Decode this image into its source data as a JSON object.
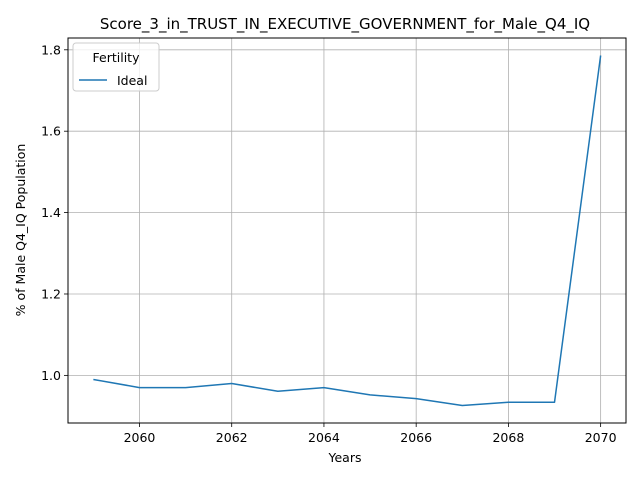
{
  "chart_data": {
    "type": "line",
    "title": "Score_3_in_TRUST_IN_EXECUTIVE_GOVERNMENT_for_Male_Q4_IQ",
    "xlabel": "Years",
    "ylabel": "% of Male Q4_IQ Population",
    "x": [
      2059,
      2060,
      2061,
      2062,
      2063,
      2064,
      2065,
      2066,
      2067,
      2068,
      2069,
      2070
    ],
    "series": [
      {
        "name": "Ideal",
        "color": "#1f77b4",
        "values": [
          0.99,
          0.97,
          0.97,
          0.98,
          0.961,
          0.97,
          0.952,
          0.943,
          0.926,
          0.934,
          0.934,
          1.786
        ]
      }
    ],
    "xlim": [
      2058.45,
      2070.55
    ],
    "ylim": [
      0.883,
      1.829
    ],
    "xticks": [
      2060,
      2062,
      2064,
      2066,
      2068,
      2070
    ],
    "yticks": [
      1.0,
      1.2,
      1.4,
      1.6,
      1.8
    ],
    "ytick_labels": [
      "1.0",
      "1.2",
      "1.4",
      "1.6",
      "1.8"
    ],
    "grid": true,
    "legend": {
      "title": "Fertility",
      "placement": "top-left"
    }
  }
}
